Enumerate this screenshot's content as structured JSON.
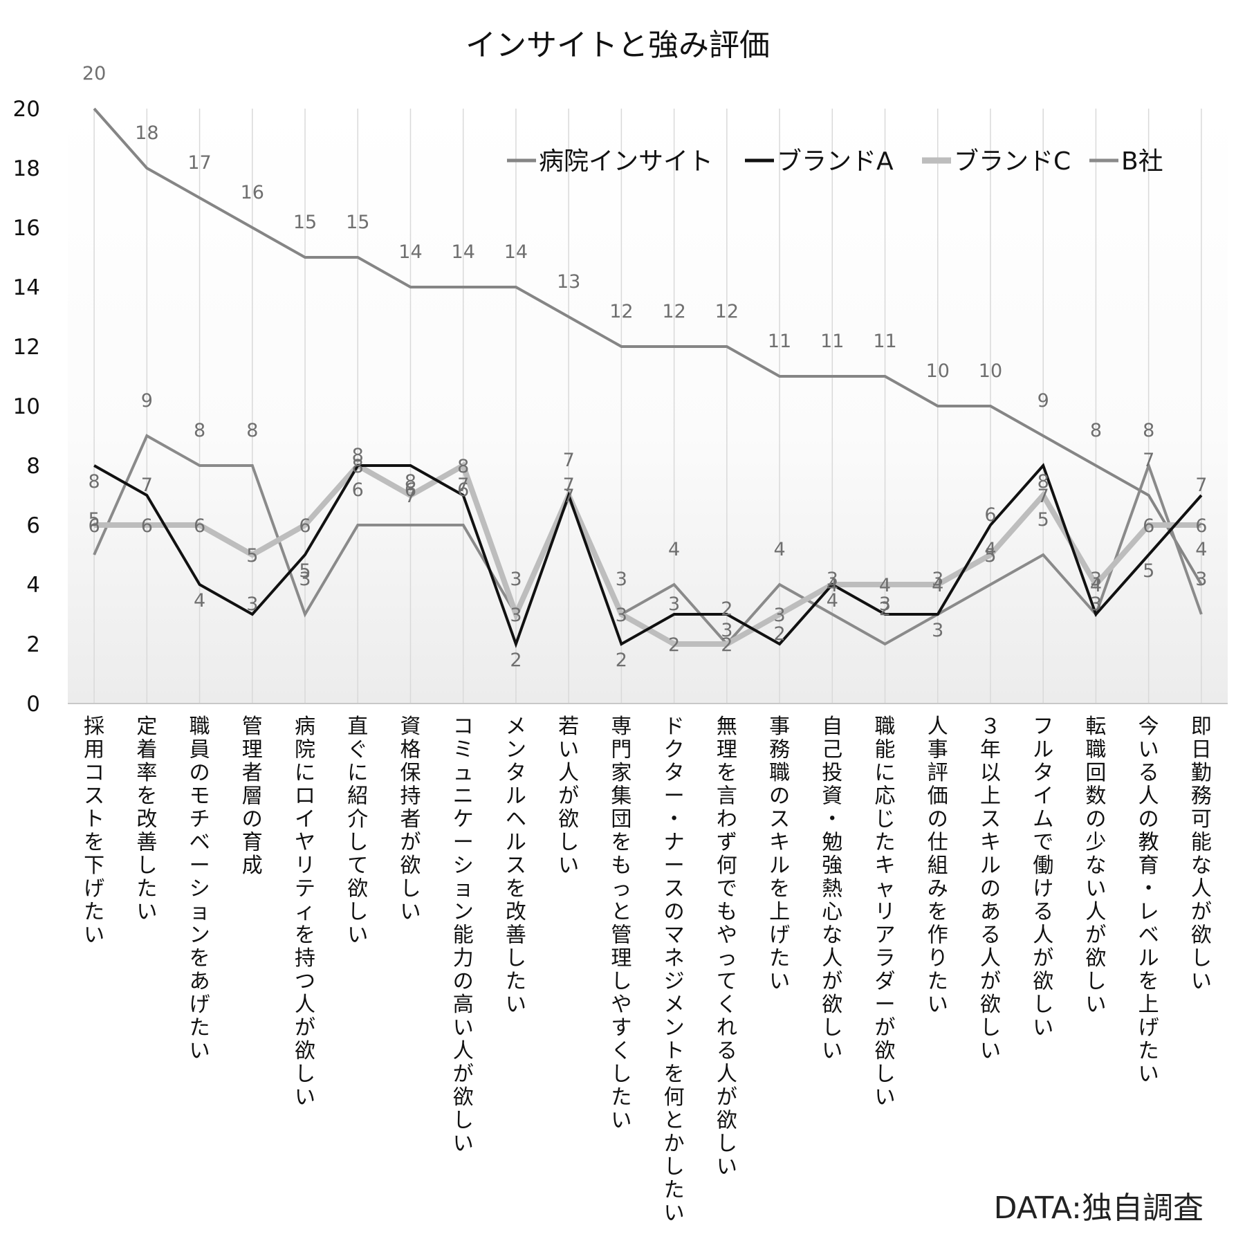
{
  "chart_data": {
    "type": "line",
    "title": "インサイトと強み評価",
    "xlabel": "",
    "ylabel": "",
    "ylim": [
      0,
      20
    ],
    "yticks": [
      0,
      2,
      4,
      6,
      8,
      10,
      12,
      14,
      16,
      18,
      20
    ],
    "grid": "vertical",
    "legend_position": "top-right",
    "categories": [
      "採用コストを下げたい",
      "定着率を改善したい",
      "職員のモチベーションをあげたい",
      "管理者層の育成",
      "病院にロイヤリティを持つ人が欲しい",
      "直ぐに紹介して欲しい",
      "資格保持者が欲しい",
      "コミュニケーション能力の高い人が欲しい",
      "メンタルヘルスを改善したい",
      "若い人が欲しい",
      "専門家集団をもっと管理しやすくしたい",
      "ドクター・ナースのマネジメントを何とかしたい",
      "無理を言わず何でもやってくれる人が欲しい",
      "事務職のスキルを上げたい",
      "自己投資・勉強熱心な人が欲しい",
      "職能に応じたキャリアラダーが欲しい",
      "人事評価の仕組みを作りたい",
      "３年以上スキルのある人が欲しい",
      "フルタイムで働ける人が欲しい",
      "転職回数の少ない人が欲しい",
      "今いる人の教育・レベルを上げたい",
      "即日勤務可能な人が欲しい"
    ],
    "series": [
      {
        "name": "病院インサイト",
        "color": "#858585",
        "width": 4,
        "values": [
          20,
          18,
          17,
          16,
          15,
          15,
          14,
          14,
          14,
          13,
          12,
          12,
          12,
          11,
          11,
          11,
          10,
          10,
          9,
          8,
          7,
          4
        ]
      },
      {
        "name": "ブランドA",
        "color": "#111111",
        "width": 4,
        "values": [
          8,
          7,
          4,
          3,
          5,
          8,
          8,
          7,
          2,
          7,
          2,
          3,
          3,
          2,
          4,
          3,
          3,
          6,
          8,
          3,
          5,
          7
        ]
      },
      {
        "name": "ブランドC",
        "color": "#bdbdbd",
        "width": 8,
        "values": [
          6,
          6,
          6,
          5,
          6,
          8,
          7,
          8,
          3,
          7,
          3,
          2,
          2,
          3,
          4,
          4,
          4,
          5,
          7,
          4,
          6,
          6
        ]
      },
      {
        "name": "B社",
        "color": "#8a8a8a",
        "width": 4,
        "values": [
          5,
          9,
          8,
          8,
          3,
          6,
          6,
          6,
          3,
          7,
          3,
          4,
          2,
          4,
          3,
          2,
          3,
          4,
          5,
          3,
          8,
          3
        ]
      }
    ]
  },
  "footer": {
    "source": "DATA:独自調査"
  }
}
